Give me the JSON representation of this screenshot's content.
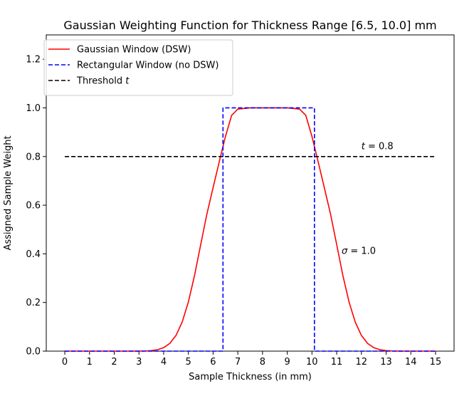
{
  "chart_data": {
    "type": "line",
    "title": "Gaussian Weighting Function for Thickness Range [6.5, 10.0] mm",
    "xlabel": "Sample Thickness (in mm)",
    "ylabel": "Assigned Sample Weight",
    "xlim": [
      -0.75,
      15.75
    ],
    "ylim": [
      0.0,
      1.3
    ],
    "x_ticks": [
      0,
      1,
      2,
      3,
      4,
      5,
      6,
      7,
      8,
      9,
      10,
      11,
      12,
      13,
      14,
      15
    ],
    "y_ticks": [
      0.0,
      0.2,
      0.4,
      0.6,
      0.8,
      1.0,
      1.2
    ],
    "grid": false,
    "legend_position": "top-left",
    "series": [
      {
        "name": "Gaussian Window (DSW)",
        "color": "#ff0000",
        "style": "solid",
        "x": [
          0,
          0.5,
          1,
          1.5,
          2,
          2.5,
          3,
          3.25,
          3.5,
          3.75,
          4,
          4.25,
          4.5,
          4.75,
          5,
          5.25,
          5.5,
          5.75,
          6,
          6.25,
          6.5,
          6.75,
          7,
          7.5,
          8,
          8.5,
          9,
          9.5,
          9.75,
          10,
          10.25,
          10.5,
          10.75,
          11,
          11.25,
          11.5,
          11.75,
          12,
          12.25,
          12.5,
          12.75,
          13,
          13.25,
          13.5,
          14,
          14.5,
          15
        ],
        "values": [
          0.0,
          0.0,
          0.0,
          0.0,
          0.0,
          0.0,
          0.0002,
          0.0007,
          0.0022,
          0.0059,
          0.0144,
          0.0319,
          0.0647,
          0.1197,
          0.2022,
          0.3114,
          0.4385,
          0.5643,
          0.6722,
          0.7788,
          0.8825,
          0.9692,
          0.995,
          1.0,
          1.0,
          1.0,
          1.0,
          0.995,
          0.9692,
          0.8825,
          0.7788,
          0.6722,
          0.5643,
          0.4385,
          0.3114,
          0.2022,
          0.1197,
          0.0647,
          0.0319,
          0.0144,
          0.0059,
          0.0022,
          0.0007,
          0.0002,
          0.0,
          0.0,
          0.0
        ]
      },
      {
        "name": "Rectangular Window (no DSW)",
        "color": "#0000ff",
        "style": "dashed",
        "x": [
          0,
          6.4,
          6.4,
          6.5,
          10.0,
          10.1,
          10.1,
          15
        ],
        "values": [
          0.0,
          0.0,
          1.0,
          1.0,
          1.0,
          1.0,
          0.0,
          0.0
        ]
      },
      {
        "name": "Threshold t",
        "color": "#000000",
        "style": "dashed",
        "x": [
          0,
          15
        ],
        "values": [
          0.8,
          0.8
        ]
      }
    ],
    "annotations": [
      {
        "text": "t = 0.8",
        "x": 12.0,
        "y": 0.83
      },
      {
        "text": "σ = 1.0",
        "x": 11.2,
        "y": 0.4
      }
    ]
  }
}
